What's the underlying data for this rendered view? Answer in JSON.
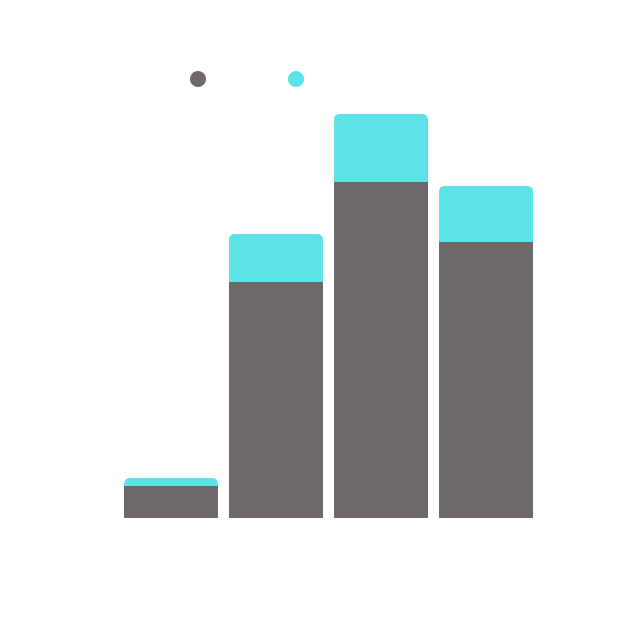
{
  "chart_data": {
    "type": "bar",
    "stacked": true,
    "categories": [
      "",
      "",
      "",
      ""
    ],
    "series": [
      {
        "color": "#6d6969",
        "values": [
          8,
          59,
          84,
          69
        ]
      },
      {
        "color": "#5ce3e8",
        "values": [
          2,
          12,
          17,
          14
        ]
      }
    ],
    "ylim": [
      0,
      100
    ],
    "grid": false,
    "legend_position": "top-left",
    "title": "",
    "xlabel": "",
    "ylabel": ""
  }
}
